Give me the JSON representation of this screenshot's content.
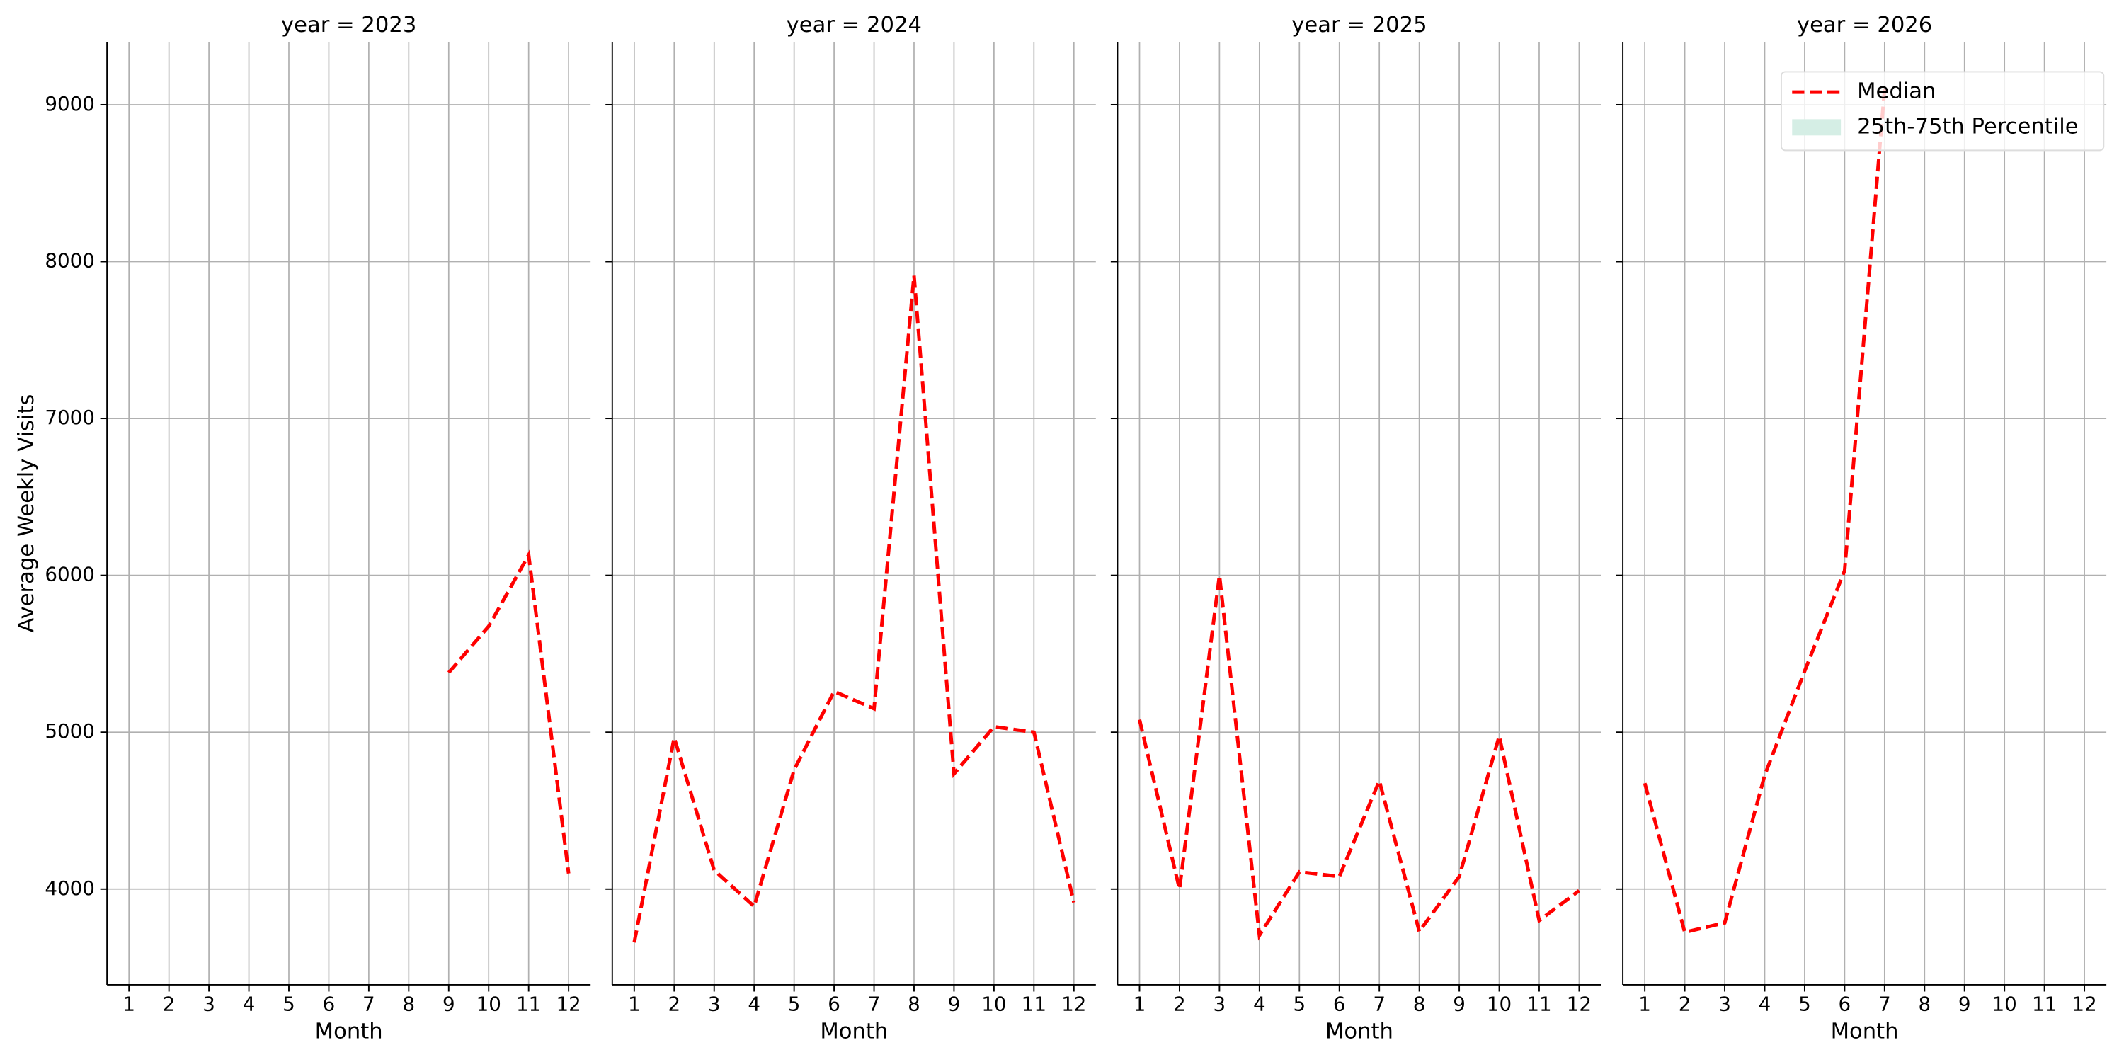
{
  "chart_data": {
    "type": "line",
    "ylabel": "Average Weekly Visits",
    "xlabel": "Month",
    "x": [
      1,
      2,
      3,
      4,
      5,
      6,
      7,
      8,
      9,
      10,
      11,
      12
    ],
    "xticks": [
      1,
      2,
      3,
      4,
      5,
      6,
      7,
      8,
      9,
      10,
      11,
      12
    ],
    "xlim": [
      0.45,
      12.55
    ],
    "ylim": [
      3390,
      9400
    ],
    "yticks": [
      4000,
      5000,
      6000,
      7000,
      8000,
      9000
    ],
    "grid": true,
    "legend_loc": "upper right",
    "series": [
      {
        "name": "Median",
        "color": "#ff0000",
        "style": "dashed"
      },
      {
        "name": "25th-75th Percentile",
        "color": "#d5eee5",
        "style": "band"
      }
    ],
    "facets": [
      {
        "title": "year = 2023",
        "values": [
          null,
          null,
          null,
          null,
          null,
          null,
          null,
          null,
          5380,
          5675,
          6130,
          4100
        ]
      },
      {
        "title": "year = 2024",
        "values": [
          3660,
          4965,
          4120,
          3890,
          4760,
          5260,
          5150,
          7910,
          4735,
          5035,
          5000,
          3915
        ]
      },
      {
        "title": "year = 2025",
        "values": [
          5080,
          4000,
          6000,
          3705,
          4110,
          4080,
          4690,
          3730,
          4080,
          4975,
          3800,
          3990
        ]
      },
      {
        "title": "year = 2026",
        "values": [
          4675,
          3725,
          3785,
          4725,
          5390,
          6030,
          9100,
          null,
          null,
          null,
          null,
          null
        ]
      }
    ]
  }
}
